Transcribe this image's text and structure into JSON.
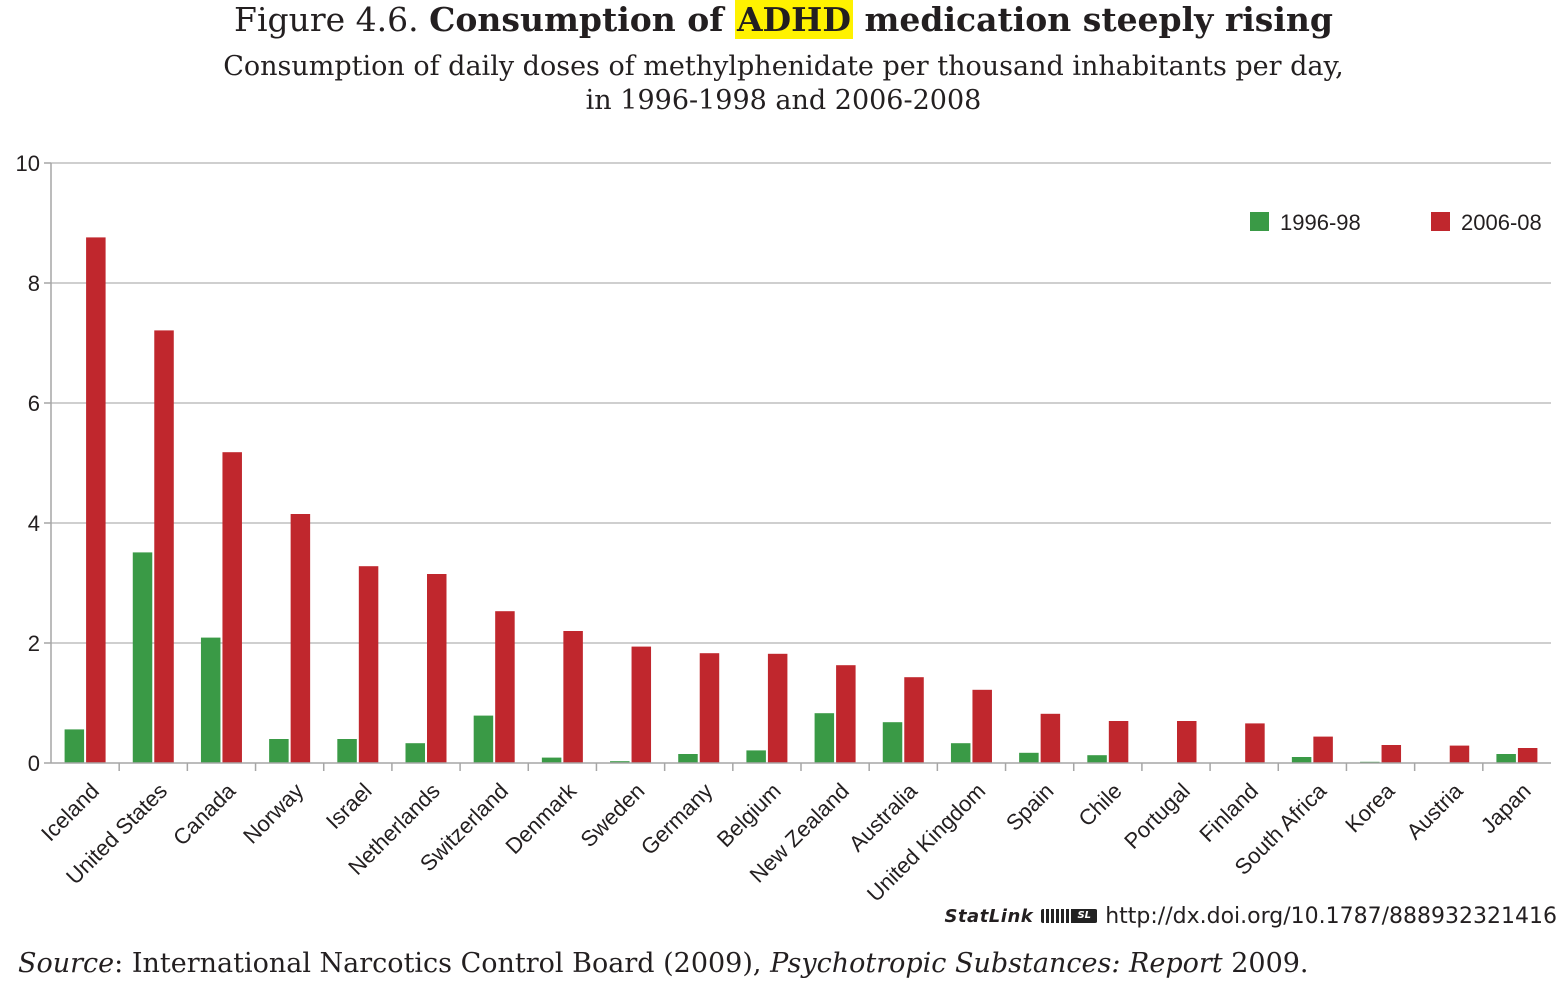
{
  "title": {
    "prefix": "Figure 4.6. ",
    "bold_a": "Consumption of ",
    "highlight": "ADHD",
    "bold_b": " medication steeply rising",
    "highlight_color": "#fff200"
  },
  "subtitle": {
    "line1": "Consumption of daily doses of methylphenidate per thousand inhabitants per day,",
    "line2": "in 1996-1998 and 2006-2008"
  },
  "statlink": {
    "name": "StatLink",
    "url": "http://dx.doi.org/10.1787/888932321416"
  },
  "source": {
    "label": "Source",
    "text_a": ": International Narcotics Control Board (2009), ",
    "italic": "Psychotropic Substances: Report",
    "text_b": " 2009."
  },
  "chart_data": {
    "type": "bar",
    "title": "Consumption of ADHD medication steeply rising",
    "xlabel": "",
    "ylabel": "",
    "ylim": [
      0,
      10
    ],
    "yticks": [
      0,
      2,
      4,
      6,
      8,
      10
    ],
    "ytick_labels": [
      "0",
      "2",
      "4",
      "6",
      "8",
      "10"
    ],
    "grid": true,
    "legend_position": "top-right",
    "categories": [
      "Iceland",
      "United States",
      "Canada",
      "Norway",
      "Israel",
      "Netherlands",
      "Switzerland",
      "Denmark",
      "Sweden",
      "Germany",
      "Belgium",
      "New Zealand",
      "Australia",
      "United Kingdom",
      "Spain",
      "Chile",
      "Portugal",
      "Finland",
      "South Africa",
      "Korea",
      "Austria",
      "Japan"
    ],
    "series": [
      {
        "name": "1996-98",
        "color": "#3a9a46",
        "values": [
          0.56,
          3.51,
          2.09,
          0.4,
          0.4,
          0.33,
          0.79,
          0.09,
          0.03,
          0.15,
          0.21,
          0.83,
          0.68,
          0.33,
          0.17,
          0.13,
          0.0,
          0.0,
          0.1,
          0.02,
          0.0,
          0.15
        ]
      },
      {
        "name": "2006-08",
        "color": "#c0272d",
        "values": [
          8.76,
          7.21,
          5.18,
          4.15,
          3.28,
          3.15,
          2.53,
          2.2,
          1.94,
          1.83,
          1.82,
          1.63,
          1.43,
          1.22,
          0.82,
          0.7,
          0.7,
          0.66,
          0.44,
          0.3,
          0.29,
          0.25
        ]
      }
    ]
  }
}
